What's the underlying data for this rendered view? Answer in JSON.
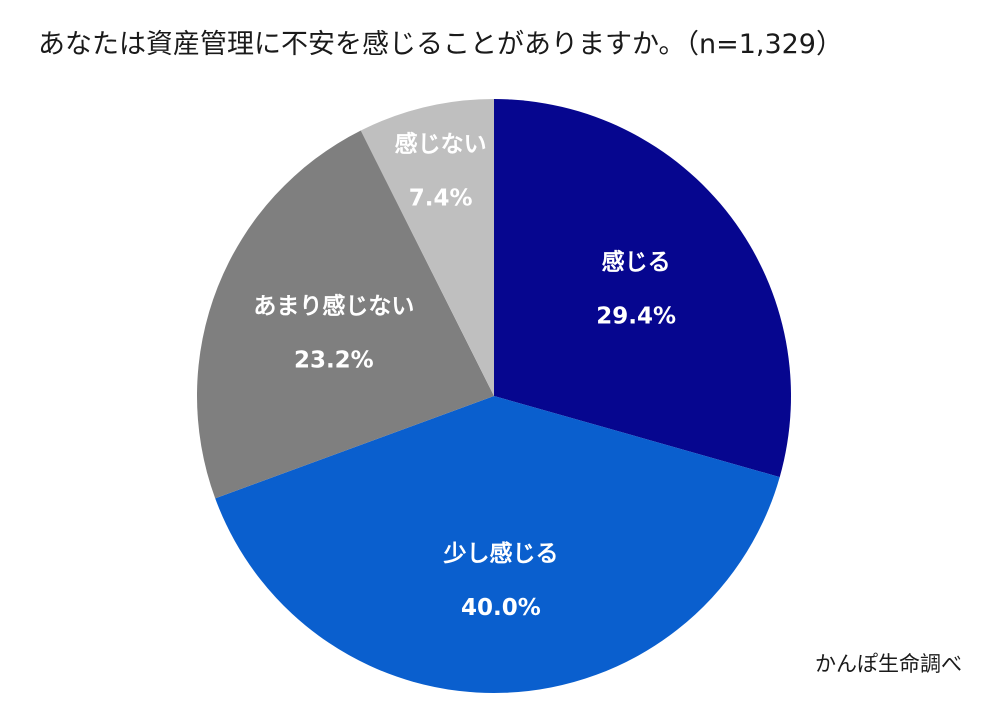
{
  "chart_data": {
    "type": "pie",
    "title": "あなたは資産管理に不安を感じることがありますか。（n=1,329）",
    "categories": [
      "感じる",
      "少し感じる",
      "あまり感じない",
      "感じない"
    ],
    "values": [
      29.4,
      40.0,
      23.2,
      7.4
    ],
    "value_labels": [
      "29.4%",
      "40.0%",
      "23.2%",
      "7.4%"
    ],
    "colors": [
      "#06068f",
      "#0a5fce",
      "#7f7f7f",
      "#bfbfbf"
    ],
    "start": "12 o'clock",
    "direction": "clockwise",
    "legend": "none (labels inside slices)"
  },
  "source": "かんぽ生命調べ"
}
